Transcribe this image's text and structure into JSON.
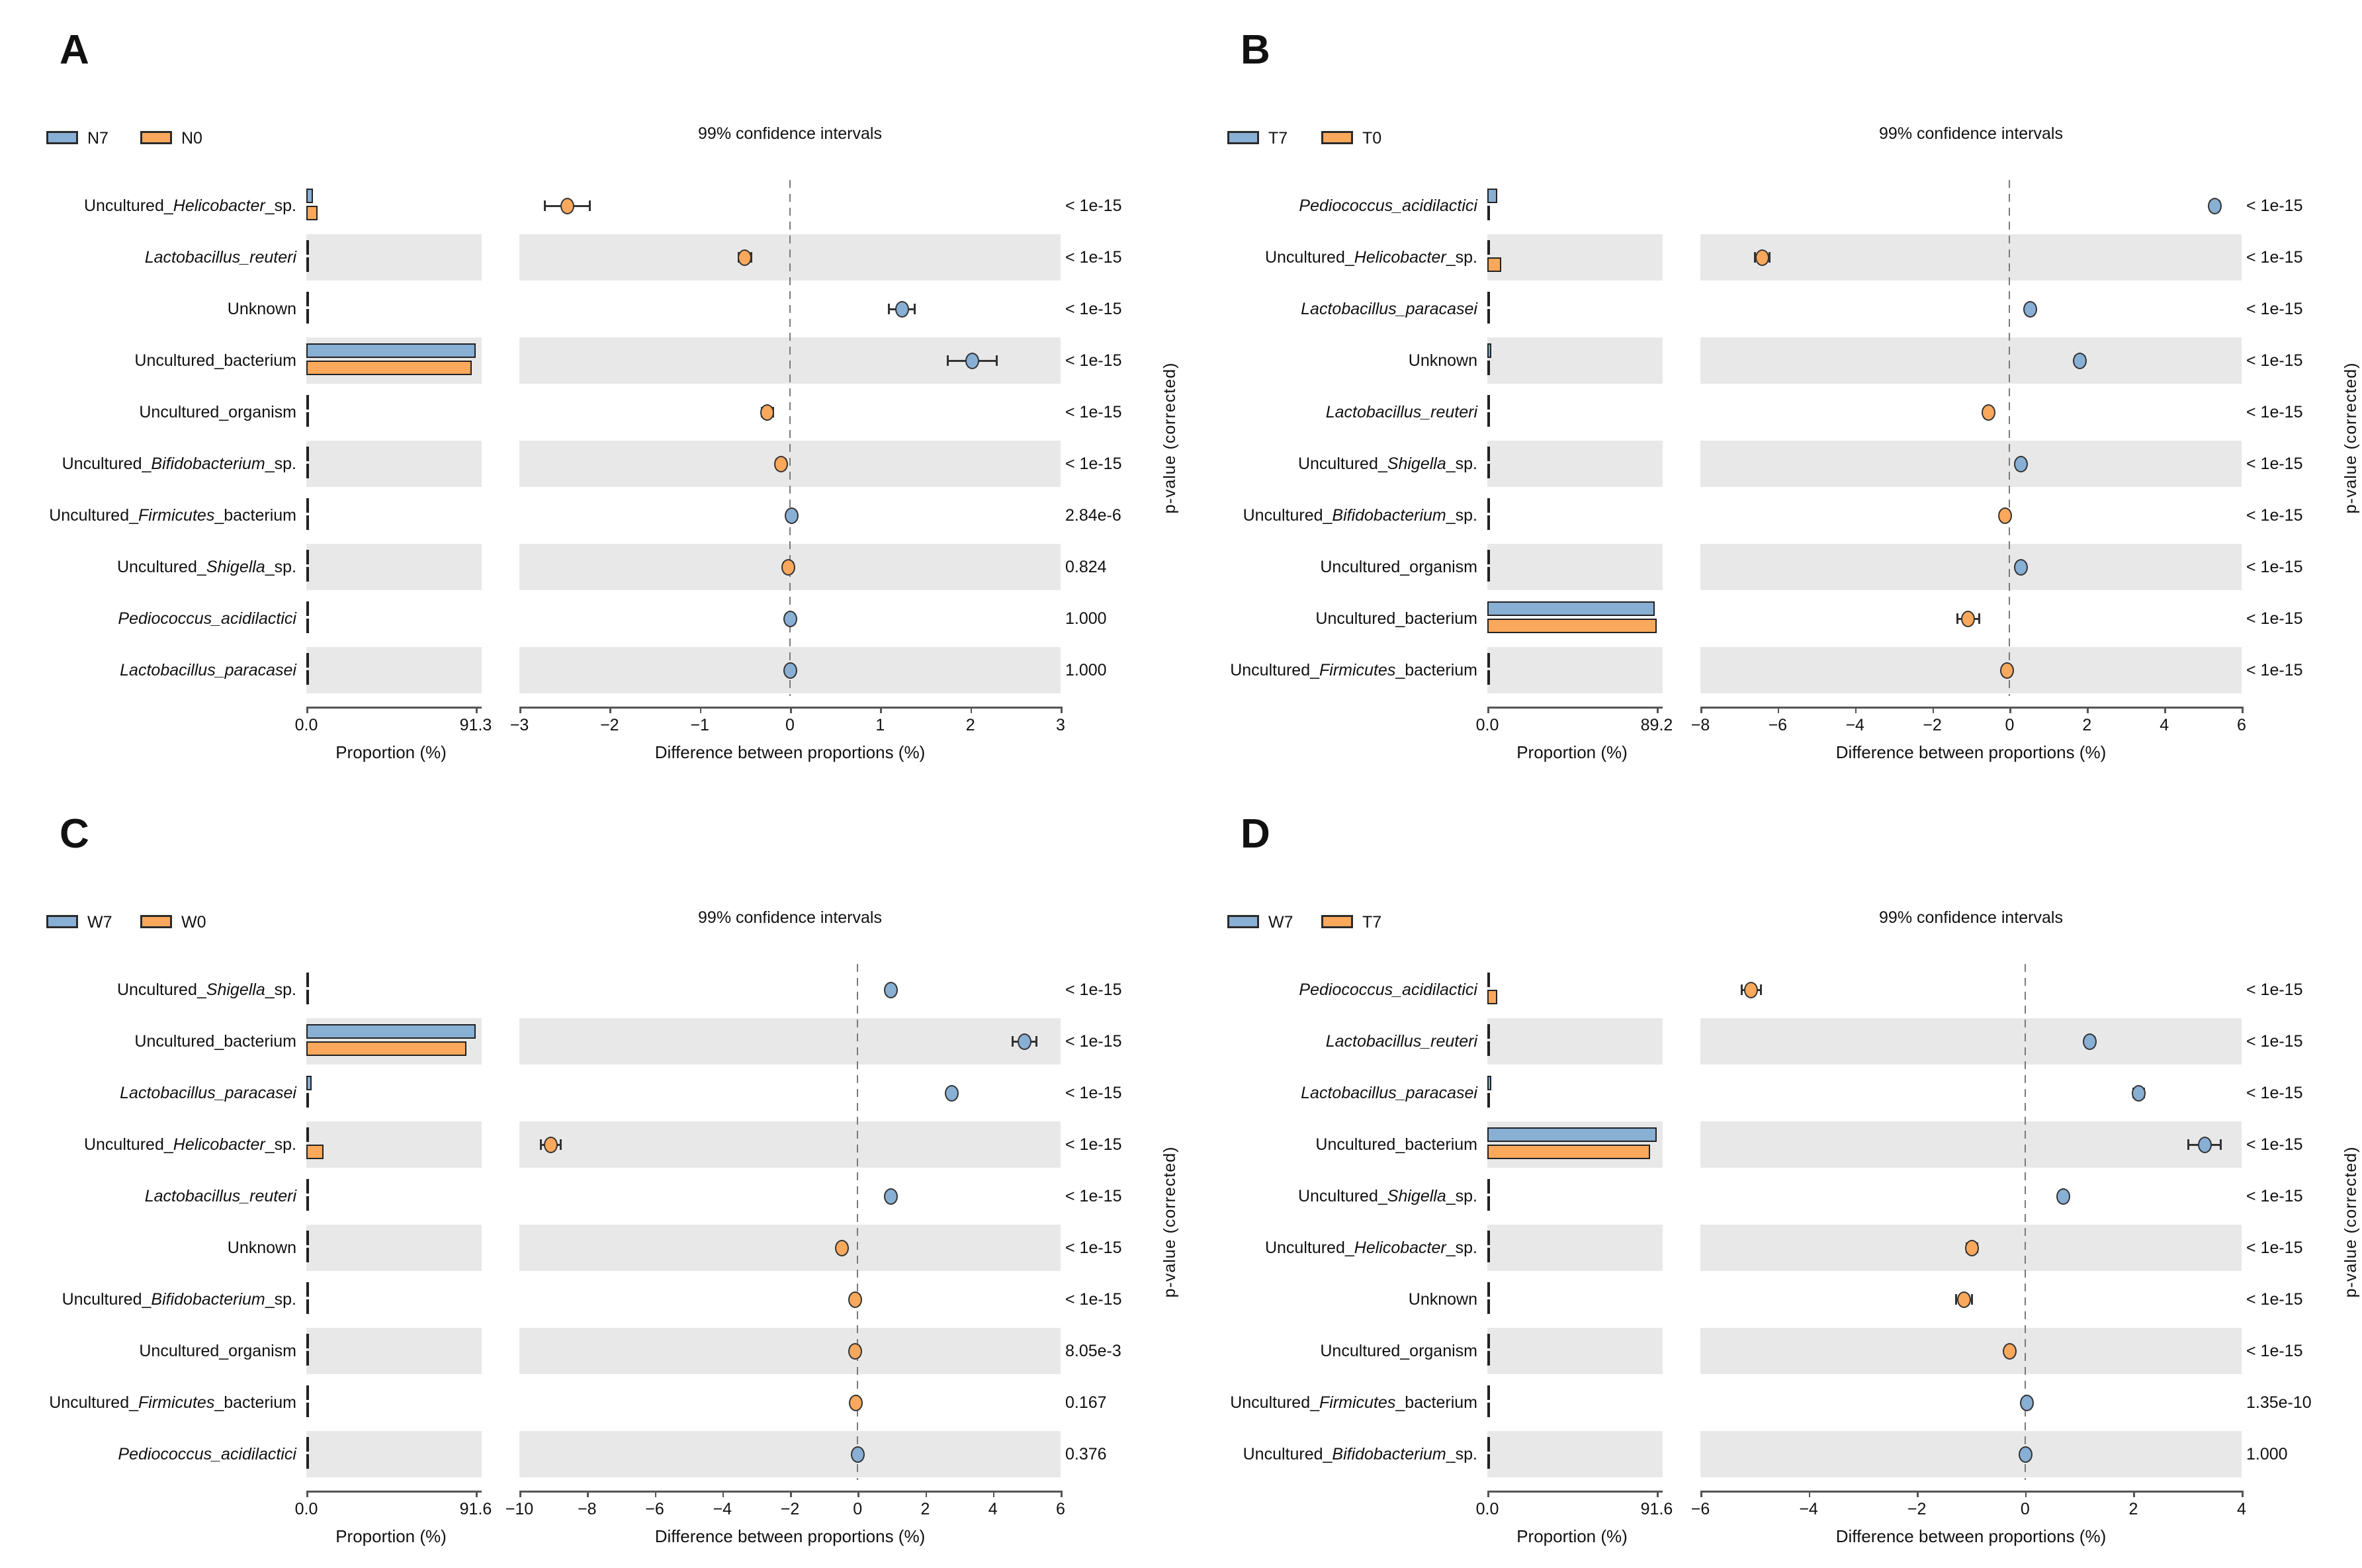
{
  "figure": {
    "ci_title": "99% confidence intervals",
    "prop_axis_label": "Proportion (%)",
    "diff_axis_label": "Difference between proportions (%)",
    "pvalue_axis_label": "p-value (corrected)",
    "colors": {
      "group1_fill": "#88AFD4",
      "group2_fill": "#FAA85C",
      "bar_edge": "#222222",
      "band": "#E8E8E8",
      "axis": "#555555",
      "zero_line": "#7a7a7a"
    }
  },
  "chart_data": [
    {
      "panel": "A",
      "type": "extended-error-bar",
      "groups": [
        "N7",
        "N0"
      ],
      "prop_axis": {
        "min": 0.0,
        "max": 91.3,
        "tick_labels": [
          "0.0",
          "91.3"
        ]
      },
      "diff_axis": {
        "min": -3,
        "max": 3,
        "ticks": [
          -3,
          -2,
          -1,
          0,
          1,
          2,
          3
        ]
      },
      "rows": [
        {
          "label": "Uncultured_Helicobacter_sp.",
          "label_parts": [
            {
              "t": "Uncultured_",
              "i": false
            },
            {
              "t": "Helicobacter",
              "i": true
            },
            {
              "t": "_sp.",
              "i": false
            }
          ],
          "prop_group1": 3.5,
          "prop_group2": 6.0,
          "diff": -2.47,
          "ci": 0.25,
          "dot": "group2",
          "p_value": "< 1e-15"
        },
        {
          "label": "Lactobacillus_reuteri",
          "label_parts": [
            {
              "t": "Lactobacillus_reuteri",
              "i": true
            }
          ],
          "prop_group1": 0.2,
          "prop_group2": 0.7,
          "diff": -0.5,
          "ci": 0.07,
          "dot": "group2",
          "p_value": "< 1e-15"
        },
        {
          "label": "Unknown",
          "label_parts": [
            {
              "t": "Unknown",
              "i": false
            }
          ],
          "prop_group1": 1.6,
          "prop_group2": 0.35,
          "diff": 1.24,
          "ci": 0.14,
          "dot": "group1",
          "p_value": "< 1e-15"
        },
        {
          "label": "Uncultured_bacterium",
          "label_parts": [
            {
              "t": "Uncultured_bacterium",
              "i": false
            }
          ],
          "prop_group1": 91.3,
          "prop_group2": 89.3,
          "diff": 2.02,
          "ci": 0.27,
          "dot": "group1",
          "p_value": "< 1e-15"
        },
        {
          "label": "Uncultured_organism",
          "label_parts": [
            {
              "t": "Uncultured_organism",
              "i": false
            }
          ],
          "prop_group1": 0.1,
          "prop_group2": 0.35,
          "diff": -0.25,
          "ci": 0.06,
          "dot": "group2",
          "p_value": "< 1e-15"
        },
        {
          "label": "Uncultured_Bifidobacterium_sp.",
          "label_parts": [
            {
              "t": "Uncultured_",
              "i": false
            },
            {
              "t": "Bifidobacterium",
              "i": true
            },
            {
              "t": "_sp.",
              "i": false
            }
          ],
          "prop_group1": 0.1,
          "prop_group2": 0.2,
          "diff": -0.1,
          "ci": 0.05,
          "dot": "group2",
          "p_value": "< 1e-15"
        },
        {
          "label": "Uncultured_Firmicutes_bacterium",
          "label_parts": [
            {
              "t": "Uncultured_",
              "i": false
            },
            {
              "t": "Firmicutes",
              "i": true
            },
            {
              "t": "_bacterium",
              "i": false
            }
          ],
          "prop_group1": 0.12,
          "prop_group2": 0.1,
          "diff": 0.02,
          "ci": 0.04,
          "dot": "group1",
          "p_value": "2.84e-6"
        },
        {
          "label": "Uncultured_Shigella_sp.",
          "label_parts": [
            {
              "t": "Uncultured_",
              "i": false
            },
            {
              "t": "Shigella",
              "i": true
            },
            {
              "t": "_sp.",
              "i": false
            }
          ],
          "prop_group1": 0.1,
          "prop_group2": 0.1,
          "diff": -0.02,
          "ci": 0.05,
          "dot": "group2",
          "p_value": "0.824"
        },
        {
          "label": "Pediococcus_acidilactici",
          "label_parts": [
            {
              "t": "Pediococcus_acidilactici",
              "i": true
            }
          ],
          "prop_group1": 0.05,
          "prop_group2": 0.05,
          "diff": 0.0,
          "ci": 0.03,
          "dot": "group1",
          "p_value": "1.000"
        },
        {
          "label": "Lactobacillus_paracasei",
          "label_parts": [
            {
              "t": "Lactobacillus_paracasei",
              "i": true
            }
          ],
          "prop_group1": 0.05,
          "prop_group2": 0.05,
          "diff": 0.0,
          "ci": 0.03,
          "dot": "group1",
          "p_value": "1.000"
        }
      ]
    },
    {
      "panel": "B",
      "type": "extended-error-bar",
      "groups": [
        "T7",
        "T0"
      ],
      "prop_axis": {
        "min": 0.0,
        "max": 89.2,
        "tick_labels": [
          "0.0",
          "89.2"
        ]
      },
      "diff_axis": {
        "min": -8,
        "max": 6,
        "ticks": [
          -8,
          -6,
          -4,
          -2,
          0,
          2,
          4,
          6
        ]
      },
      "rows": [
        {
          "label": "Pediococcus_acidilactici",
          "label_parts": [
            {
              "t": "Pediococcus_acidilactici",
              "i": true
            }
          ],
          "prop_group1": 5.4,
          "prop_group2": 0.1,
          "diff": 5.3,
          "ci": 0.12,
          "dot": "group1",
          "p_value": "< 1e-15"
        },
        {
          "label": "Uncultured_Helicobacter_sp.",
          "label_parts": [
            {
              "t": "Uncultured_",
              "i": false
            },
            {
              "t": "Helicobacter",
              "i": true
            },
            {
              "t": "_sp.",
              "i": false
            }
          ],
          "prop_group1": 0.8,
          "prop_group2": 7.2,
          "diff": -6.4,
          "ci": 0.18,
          "dot": "group2",
          "p_value": "< 1e-15"
        },
        {
          "label": "Lactobacillus_paracasei",
          "label_parts": [
            {
              "t": "Lactobacillus_paracasei",
              "i": true
            }
          ],
          "prop_group1": 0.65,
          "prop_group2": 0.1,
          "diff": 0.54,
          "ci": 0.06,
          "dot": "group1",
          "p_value": "< 1e-15"
        },
        {
          "label": "Unknown",
          "label_parts": [
            {
              "t": "Unknown",
              "i": false
            }
          ],
          "prop_group1": 2.1,
          "prop_group2": 0.3,
          "diff": 1.81,
          "ci": 0.12,
          "dot": "group1",
          "p_value": "< 1e-15"
        },
        {
          "label": "Lactobacillus_reuteri",
          "label_parts": [
            {
              "t": "Lactobacillus_reuteri",
              "i": true
            }
          ],
          "prop_group1": 0.1,
          "prop_group2": 0.65,
          "diff": -0.55,
          "ci": 0.06,
          "dot": "group2",
          "p_value": "< 1e-15"
        },
        {
          "label": "Uncultured_Shigella_sp.",
          "label_parts": [
            {
              "t": "Uncultured_",
              "i": false
            },
            {
              "t": "Shigella",
              "i": true
            },
            {
              "t": "_sp.",
              "i": false
            }
          ],
          "prop_group1": 0.42,
          "prop_group2": 0.12,
          "diff": 0.3,
          "ci": 0.05,
          "dot": "group1",
          "p_value": "< 1e-15"
        },
        {
          "label": "Uncultured_Bifidobacterium_sp.",
          "label_parts": [
            {
              "t": "Uncultured_",
              "i": false
            },
            {
              "t": "Bifidobacterium",
              "i": true
            },
            {
              "t": "_sp.",
              "i": false
            }
          ],
          "prop_group1": 0.05,
          "prop_group2": 0.17,
          "diff": -0.12,
          "ci": 0.04,
          "dot": "group2",
          "p_value": "< 1e-15"
        },
        {
          "label": "Uncultured_organism",
          "label_parts": [
            {
              "t": "Uncultured_organism",
              "i": false
            }
          ],
          "prop_group1": 0.42,
          "prop_group2": 0.12,
          "diff": 0.3,
          "ci": 0.05,
          "dot": "group1",
          "p_value": "< 1e-15"
        },
        {
          "label": "Uncultured_bacterium",
          "label_parts": [
            {
              "t": "Uncultured_bacterium",
              "i": false
            }
          ],
          "prop_group1": 88.1,
          "prop_group2": 89.2,
          "diff": -1.07,
          "ci": 0.28,
          "dot": "group2",
          "p_value": "< 1e-15"
        },
        {
          "label": "Uncultured_Firmicutes_bacterium",
          "label_parts": [
            {
              "t": "Uncultured_",
              "i": false
            },
            {
              "t": "Firmicutes",
              "i": true
            },
            {
              "t": "_bacterium",
              "i": false
            }
          ],
          "prop_group1": 0.05,
          "prop_group2": 0.11,
          "diff": -0.06,
          "ci": 0.04,
          "dot": "group2",
          "p_value": "< 1e-15"
        }
      ]
    },
    {
      "panel": "C",
      "type": "extended-error-bar",
      "groups": [
        "W7",
        "W0"
      ],
      "prop_axis": {
        "min": 0.0,
        "max": 91.6,
        "tick_labels": [
          "0.0",
          "91.6"
        ]
      },
      "diff_axis": {
        "min": -10,
        "max": 6,
        "ticks": [
          -10,
          -8,
          -6,
          -4,
          -2,
          0,
          2,
          4,
          6
        ]
      },
      "rows": [
        {
          "label": "Uncultured_Shigella_sp.",
          "label_parts": [
            {
              "t": "Uncultured_",
              "i": false
            },
            {
              "t": "Shigella",
              "i": true
            },
            {
              "t": "_sp.",
              "i": false
            }
          ],
          "prop_group1": 1.1,
          "prop_group2": 0.1,
          "diff": 0.98,
          "ci": 0.08,
          "dot": "group1",
          "p_value": "< 1e-15"
        },
        {
          "label": "Uncultured_bacterium",
          "label_parts": [
            {
              "t": "Uncultured_bacterium",
              "i": false
            }
          ],
          "prop_group1": 91.6,
          "prop_group2": 86.7,
          "diff": 4.94,
          "ci": 0.35,
          "dot": "group1",
          "p_value": "< 1e-15"
        },
        {
          "label": "Lactobacillus_paracasei",
          "label_parts": [
            {
              "t": "Lactobacillus_paracasei",
              "i": true
            }
          ],
          "prop_group1": 2.9,
          "prop_group2": 0.1,
          "diff": 2.78,
          "ci": 0.1,
          "dot": "group1",
          "p_value": "< 1e-15"
        },
        {
          "label": "Uncultured_Helicobacter_sp.",
          "label_parts": [
            {
              "t": "Uncultured_",
              "i": false
            },
            {
              "t": "Helicobacter",
              "i": true
            },
            {
              "t": "_sp.",
              "i": false
            }
          ],
          "prop_group1": 0.3,
          "prop_group2": 9.4,
          "diff": -9.07,
          "ci": 0.3,
          "dot": "group2",
          "p_value": "< 1e-15"
        },
        {
          "label": "Lactobacillus_reuteri",
          "label_parts": [
            {
              "t": "Lactobacillus_reuteri",
              "i": true
            }
          ],
          "prop_group1": 1.1,
          "prop_group2": 0.1,
          "diff": 0.98,
          "ci": 0.08,
          "dot": "group1",
          "p_value": "< 1e-15"
        },
        {
          "label": "Unknown",
          "label_parts": [
            {
              "t": "Unknown",
              "i": false
            }
          ],
          "prop_group1": 1.0,
          "prop_group2": 1.5,
          "diff": -0.47,
          "ci": 0.1,
          "dot": "group2",
          "p_value": "< 1e-15"
        },
        {
          "label": "Uncultured_Bifidobacterium_sp.",
          "label_parts": [
            {
              "t": "Uncultured_",
              "i": false
            },
            {
              "t": "Bifidobacterium",
              "i": true
            },
            {
              "t": "_sp.",
              "i": false
            }
          ],
          "prop_group1": 0.05,
          "prop_group2": 0.13,
          "diff": -0.08,
          "ci": 0.04,
          "dot": "group2",
          "p_value": "< 1e-15"
        },
        {
          "label": "Uncultured_organism",
          "label_parts": [
            {
              "t": "Uncultured_organism",
              "i": false
            }
          ],
          "prop_group1": 0.1,
          "prop_group2": 0.18,
          "diff": -0.08,
          "ci": 0.04,
          "dot": "group2",
          "p_value": "8.05e-3"
        },
        {
          "label": "Uncultured_Firmicutes_bacterium",
          "label_parts": [
            {
              "t": "Uncultured_",
              "i": false
            },
            {
              "t": "Firmicutes",
              "i": true
            },
            {
              "t": "_bacterium",
              "i": false
            }
          ],
          "prop_group1": 0.05,
          "prop_group2": 0.1,
          "diff": -0.05,
          "ci": 0.04,
          "dot": "group2",
          "p_value": "0.167"
        },
        {
          "label": "Pediococcus_acidilactici",
          "label_parts": [
            {
              "t": "Pediococcus_acidilactici",
              "i": true
            }
          ],
          "prop_group1": 0.06,
          "prop_group2": 0.05,
          "diff": 0.01,
          "ci": 0.03,
          "dot": "group1",
          "p_value": "0.376"
        }
      ]
    },
    {
      "panel": "D",
      "type": "extended-error-bar",
      "groups": [
        "W7",
        "T7"
      ],
      "prop_axis": {
        "min": 0.0,
        "max": 91.6,
        "tick_labels": [
          "0.0",
          "91.6"
        ]
      },
      "diff_axis": {
        "min": -6,
        "max": 4,
        "ticks": [
          -6,
          -4,
          -2,
          0,
          2,
          4
        ]
      },
      "rows": [
        {
          "label": "Pediococcus_acidilactici",
          "label_parts": [
            {
              "t": "Pediococcus_acidilactici",
              "i": true
            }
          ],
          "prop_group1": 0.3,
          "prop_group2": 5.4,
          "diff": -5.06,
          "ci": 0.18,
          "dot": "group2",
          "p_value": "< 1e-15"
        },
        {
          "label": "Lactobacillus_reuteri",
          "label_parts": [
            {
              "t": "Lactobacillus_reuteri",
              "i": true
            }
          ],
          "prop_group1": 1.3,
          "prop_group2": 0.1,
          "diff": 1.2,
          "ci": 0.08,
          "dot": "group1",
          "p_value": "< 1e-15"
        },
        {
          "label": "Lactobacillus_paracasei",
          "label_parts": [
            {
              "t": "Lactobacillus_paracasei",
              "i": true
            }
          ],
          "prop_group1": 2.3,
          "prop_group2": 0.1,
          "diff": 2.1,
          "ci": 0.1,
          "dot": "group1",
          "p_value": "< 1e-15"
        },
        {
          "label": "Uncultured_bacterium",
          "label_parts": [
            {
              "t": "Uncultured_bacterium",
              "i": false
            }
          ],
          "prop_group1": 91.6,
          "prop_group2": 88.2,
          "diff": 3.32,
          "ci": 0.3,
          "dot": "group1",
          "p_value": "< 1e-15"
        },
        {
          "label": "Uncultured_Shigella_sp.",
          "label_parts": [
            {
              "t": "Uncultured_",
              "i": false
            },
            {
              "t": "Shigella",
              "i": true
            },
            {
              "t": "_sp.",
              "i": false
            }
          ],
          "prop_group1": 0.85,
          "prop_group2": 0.12,
          "diff": 0.71,
          "ci": 0.07,
          "dot": "group1",
          "p_value": "< 1e-15"
        },
        {
          "label": "Uncultured_Helicobacter_sp.",
          "label_parts": [
            {
              "t": "Uncultured_",
              "i": false
            },
            {
              "t": "Helicobacter",
              "i": true
            },
            {
              "t": "_sp.",
              "i": false
            }
          ],
          "prop_group1": 0.25,
          "prop_group2": 1.2,
          "diff": -0.98,
          "ci": 0.1,
          "dot": "group2",
          "p_value": "< 1e-15"
        },
        {
          "label": "Unknown",
          "label_parts": [
            {
              "t": "Unknown",
              "i": false
            }
          ],
          "prop_group1": 0.4,
          "prop_group2": 1.55,
          "diff": -1.13,
          "ci": 0.15,
          "dot": "group2",
          "p_value": "< 1e-15"
        },
        {
          "label": "Uncultured_organism",
          "label_parts": [
            {
              "t": "Uncultured_organism",
              "i": false
            }
          ],
          "prop_group1": 0.12,
          "prop_group2": 0.4,
          "diff": -0.28,
          "ci": 0.06,
          "dot": "group2",
          "p_value": "< 1e-15"
        },
        {
          "label": "Uncultured_Firmicutes_bacterium",
          "label_parts": [
            {
              "t": "Uncultured_",
              "i": false
            },
            {
              "t": "Firmicutes",
              "i": true
            },
            {
              "t": "_bacterium",
              "i": false
            }
          ],
          "prop_group1": 0.12,
          "prop_group2": 0.1,
          "diff": 0.03,
          "ci": 0.04,
          "dot": "group1",
          "p_value": "1.35e-10"
        },
        {
          "label": "Uncultured_Bifidobacterium_sp.",
          "label_parts": [
            {
              "t": "Uncultured_",
              "i": false
            },
            {
              "t": "Bifidobacterium",
              "i": true
            },
            {
              "t": "_sp.",
              "i": false
            }
          ],
          "prop_group1": 0.06,
          "prop_group2": 0.05,
          "diff": 0.01,
          "ci": 0.03,
          "dot": "group1",
          "p_value": "1.000"
        }
      ]
    }
  ]
}
